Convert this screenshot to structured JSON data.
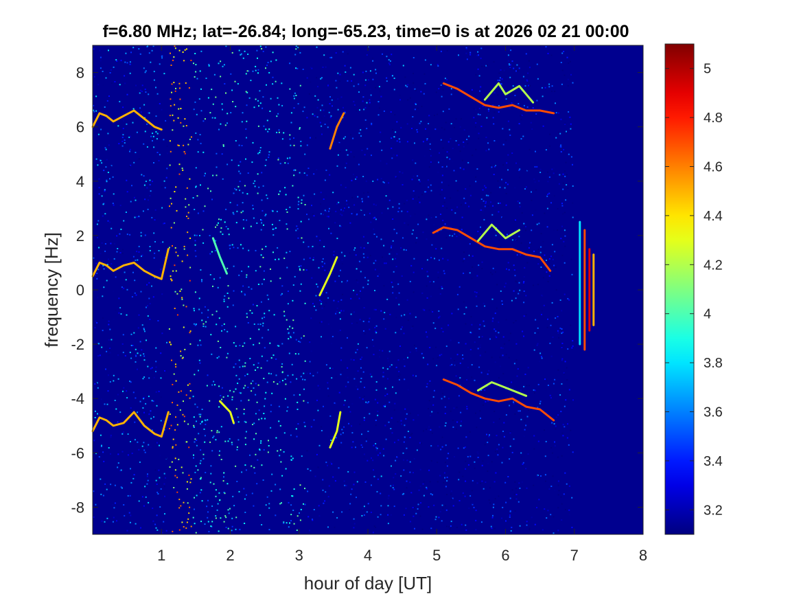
{
  "chart_data": {
    "type": "heatmap",
    "title": "f=6.80 MHz;  lat=-26.84; long=-65.23, time=0 is at 2026 02 21 00:00",
    "xlabel": "hour of day [UT]",
    "ylabel": "frequency [Hz]",
    "xlim": [
      0,
      8
    ],
    "ylim": [
      -9,
      9
    ],
    "xticks": [
      1,
      2,
      3,
      4,
      5,
      6,
      7,
      8
    ],
    "yticks": [
      8,
      6,
      4,
      2,
      0,
      -2,
      -4,
      -6,
      -8
    ],
    "xtick_labels": [
      "1",
      "2",
      "3",
      "4",
      "5",
      "6",
      "7",
      "8"
    ],
    "ytick_labels": [
      "8",
      "6",
      "4",
      "2",
      "0",
      "-2",
      "-4",
      "-6",
      "-8"
    ],
    "colormap": "jet",
    "background_color": "#00008f",
    "colorbar": {
      "clim": [
        3.1,
        5.1
      ],
      "ticks": [
        3.2,
        3.4,
        3.6,
        3.8,
        4,
        4.2,
        4.4,
        4.6,
        4.8,
        5
      ],
      "tick_labels": [
        "3.2",
        "3.4",
        "3.6",
        "3.8",
        "4",
        "4.2",
        "4.4",
        "4.6",
        "4.8",
        "5"
      ]
    },
    "noise_bands": [
      {
        "x": [
          0.0,
          1.1
        ],
        "level": 3.45
      },
      {
        "x": [
          1.1,
          1.45
        ],
        "level": 4.4
      },
      {
        "x": [
          1.45,
          3.1
        ],
        "level": 3.75
      },
      {
        "x": [
          3.1,
          4.6
        ],
        "level": 3.4
      },
      {
        "x": [
          4.6,
          7.0
        ],
        "level": 3.3
      }
    ],
    "series": [
      {
        "x": [
          0.0,
          0.1,
          0.2,
          0.3,
          0.45,
          0.6,
          0.75,
          0.9,
          1.0
        ],
        "y": [
          6.0,
          6.5,
          6.4,
          6.2,
          6.4,
          6.6,
          6.3,
          6.0,
          5.9
        ],
        "level": 4.5
      },
      {
        "x": [
          0.0,
          0.1,
          0.2,
          0.3,
          0.45,
          0.6,
          0.75,
          0.9,
          1.0,
          1.1
        ],
        "y": [
          0.5,
          1.0,
          0.9,
          0.7,
          0.9,
          1.0,
          0.7,
          0.5,
          0.4,
          1.5
        ],
        "level": 4.5
      },
      {
        "x": [
          0.0,
          0.1,
          0.2,
          0.3,
          0.45,
          0.6,
          0.75,
          0.9,
          1.0,
          1.1
        ],
        "y": [
          -5.2,
          -4.7,
          -4.8,
          -5.0,
          -4.9,
          -4.5,
          -5.0,
          -5.3,
          -5.4,
          -4.5
        ],
        "level": 4.5
      },
      {
        "x": [
          1.85,
          2.0,
          2.05
        ],
        "y": [
          -4.1,
          -4.5,
          -4.9
        ],
        "level": 4.3
      },
      {
        "x": [
          1.75,
          1.85,
          1.95
        ],
        "y": [
          1.9,
          1.2,
          0.6
        ],
        "level": 4.0
      },
      {
        "x": [
          3.45,
          3.55,
          3.65
        ],
        "y": [
          5.2,
          6.0,
          6.5
        ],
        "level": 4.6
      },
      {
        "x": [
          3.3,
          3.45,
          3.55
        ],
        "y": [
          -0.2,
          0.6,
          1.2
        ],
        "level": 4.3
      },
      {
        "x": [
          3.45,
          3.55,
          3.6
        ],
        "y": [
          -5.8,
          -5.2,
          -4.5
        ],
        "level": 4.3
      },
      {
        "x": [
          5.1,
          5.3,
          5.5,
          5.7,
          5.9,
          6.1,
          6.3,
          6.5,
          6.7
        ],
        "y": [
          7.6,
          7.4,
          7.1,
          6.8,
          6.7,
          6.8,
          6.6,
          6.6,
          6.5
        ],
        "level": 4.7
      },
      {
        "x": [
          5.7,
          5.9,
          6.0,
          6.2,
          6.4
        ],
        "y": [
          7.0,
          7.6,
          7.2,
          7.5,
          6.9
        ],
        "level": 4.2
      },
      {
        "x": [
          4.95,
          5.1,
          5.3,
          5.5,
          5.7,
          5.9,
          6.1,
          6.3,
          6.5,
          6.65
        ],
        "y": [
          2.1,
          2.3,
          2.2,
          1.9,
          1.6,
          1.5,
          1.5,
          1.3,
          1.2,
          0.7
        ],
        "level": 4.7
      },
      {
        "x": [
          5.6,
          5.8,
          6.0,
          6.2
        ],
        "y": [
          1.8,
          2.4,
          1.9,
          2.2
        ],
        "level": 4.2
      },
      {
        "x": [
          5.1,
          5.3,
          5.5,
          5.7,
          5.9,
          6.1,
          6.3,
          6.5,
          6.7
        ],
        "y": [
          -3.3,
          -3.5,
          -3.8,
          -4.0,
          -4.1,
          -4.0,
          -4.3,
          -4.4,
          -4.8
        ],
        "level": 4.7
      },
      {
        "x": [
          5.6,
          5.8,
          6.0,
          6.3
        ],
        "y": [
          -3.7,
          -3.4,
          -3.6,
          -3.9
        ],
        "level": 4.2
      },
      {
        "x": [
          7.08,
          7.08
        ],
        "y": [
          -2.0,
          2.5
        ],
        "level": 3.8
      },
      {
        "x": [
          7.15,
          7.15
        ],
        "y": [
          -2.2,
          2.2
        ],
        "level": 4.7
      },
      {
        "x": [
          7.22,
          7.22
        ],
        "y": [
          -1.5,
          1.5
        ],
        "level": 4.9
      },
      {
        "x": [
          7.28,
          7.28
        ],
        "y": [
          -1.3,
          1.3
        ],
        "level": 4.5
      }
    ]
  }
}
